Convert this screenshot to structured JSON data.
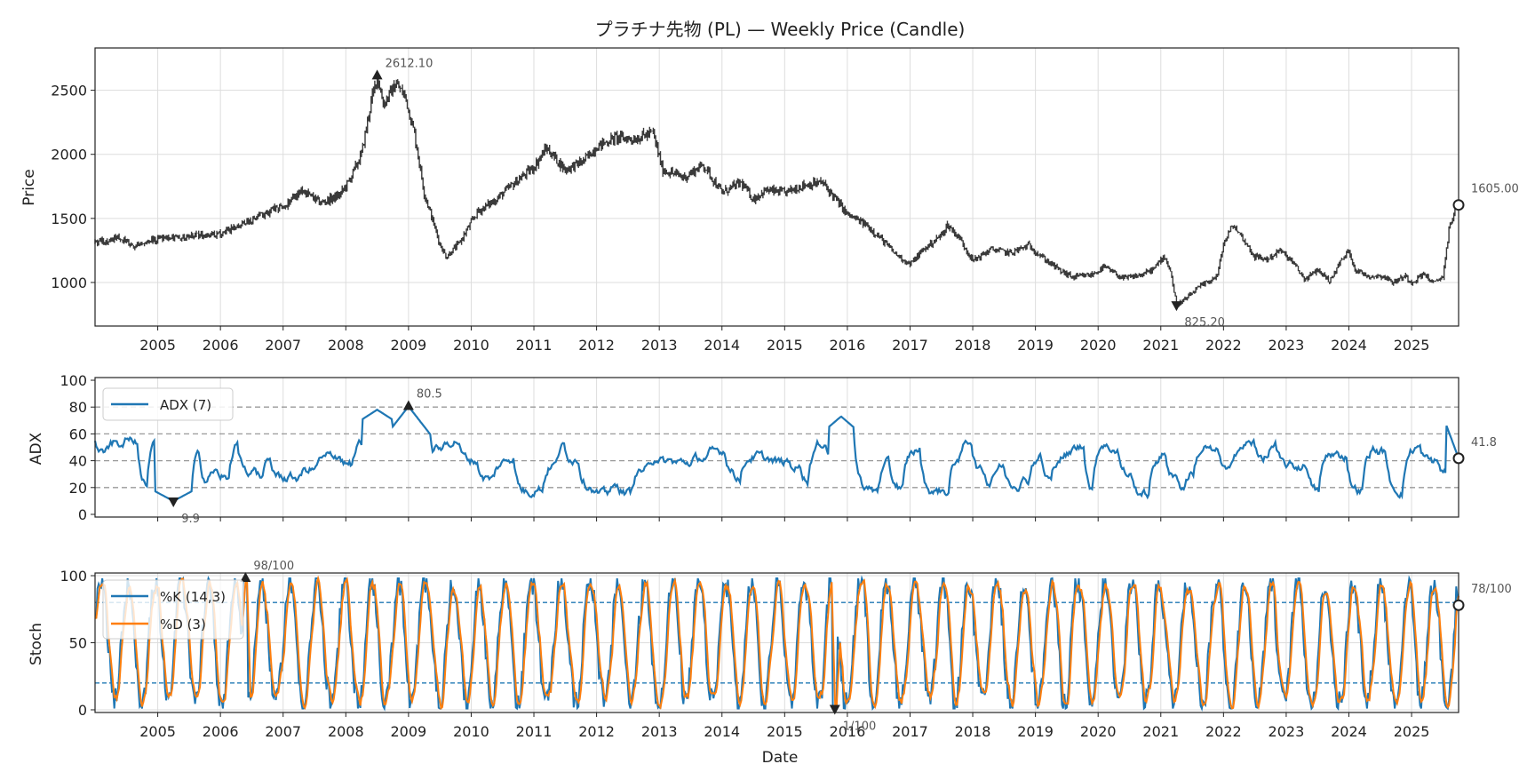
{
  "chart_data": [
    {
      "type": "candlestick",
      "title": "プラチナ先物 (PL) — Weekly Price (Candle)",
      "ylabel": "Price",
      "xlabel": "",
      "x_ticks": [
        "2005",
        "2006",
        "2007",
        "2008",
        "2009",
        "2010",
        "2011",
        "2012",
        "2013",
        "2014",
        "2015",
        "2016",
        "2017",
        "2018",
        "2019",
        "2020",
        "2021",
        "2022",
        "2023",
        "2024",
        "2025"
      ],
      "y_ticks": [
        1000,
        1500,
        2000,
        2500
      ],
      "xlim": [
        2004.0,
        2025.75
      ],
      "ylim": [
        660,
        2830
      ],
      "keypoints": [
        [
          2004.0,
          1310
        ],
        [
          2004.4,
          1350
        ],
        [
          2004.6,
          1280
        ],
        [
          2005.0,
          1340
        ],
        [
          2005.5,
          1360
        ],
        [
          2006.0,
          1380
        ],
        [
          2006.4,
          1460
        ],
        [
          2006.8,
          1560
        ],
        [
          2007.0,
          1590
        ],
        [
          2007.3,
          1720
        ],
        [
          2007.6,
          1620
        ],
        [
          2007.9,
          1680
        ],
        [
          2008.05,
          1790
        ],
        [
          2008.25,
          2000
        ],
        [
          2008.4,
          2400
        ],
        [
          2008.5,
          2612
        ],
        [
          2008.6,
          2390
        ],
        [
          2008.8,
          2550
        ],
        [
          2008.95,
          2450
        ],
        [
          2009.1,
          2150
        ],
        [
          2009.25,
          1700
        ],
        [
          2009.5,
          1300
        ],
        [
          2009.6,
          1200
        ],
        [
          2009.8,
          1300
        ],
        [
          2010.1,
          1550
        ],
        [
          2010.4,
          1650
        ],
        [
          2010.7,
          1780
        ],
        [
          2011.0,
          1900
        ],
        [
          2011.2,
          2050
        ],
        [
          2011.5,
          1880
        ],
        [
          2011.8,
          1950
        ],
        [
          2012.0,
          2060
        ],
        [
          2012.3,
          2130
        ],
        [
          2012.6,
          2120
        ],
        [
          2012.9,
          2170
        ],
        [
          2013.05,
          1880
        ],
        [
          2013.4,
          1820
        ],
        [
          2013.7,
          1920
        ],
        [
          2014.0,
          1700
        ],
        [
          2014.3,
          1780
        ],
        [
          2014.5,
          1650
        ],
        [
          2014.7,
          1720
        ],
        [
          2015.0,
          1700
        ],
        [
          2015.3,
          1760
        ],
        [
          2015.6,
          1780
        ],
        [
          2015.8,
          1660
        ],
        [
          2016.0,
          1530
        ],
        [
          2016.3,
          1450
        ],
        [
          2016.5,
          1360
        ],
        [
          2016.75,
          1230
        ],
        [
          2017.0,
          1140
        ],
        [
          2017.2,
          1250
        ],
        [
          2017.5,
          1370
        ],
        [
          2017.6,
          1450
        ],
        [
          2017.8,
          1340
        ],
        [
          2018.0,
          1170
        ],
        [
          2018.3,
          1260
        ],
        [
          2018.6,
          1230
        ],
        [
          2018.9,
          1290
        ],
        [
          2019.1,
          1200
        ],
        [
          2019.4,
          1090
        ],
        [
          2019.6,
          1040
        ],
        [
          2019.9,
          1060
        ],
        [
          2020.1,
          1120
        ],
        [
          2020.4,
          1030
        ],
        [
          2020.7,
          1060
        ],
        [
          2020.9,
          1110
        ],
        [
          2021.05,
          1210
        ],
        [
          2021.15,
          1100
        ],
        [
          2021.25,
          825
        ],
        [
          2021.4,
          870
        ],
        [
          2021.6,
          960
        ],
        [
          2021.9,
          1050
        ],
        [
          2022.0,
          1300
        ],
        [
          2022.15,
          1450
        ],
        [
          2022.3,
          1350
        ],
        [
          2022.5,
          1200
        ],
        [
          2022.7,
          1180
        ],
        [
          2022.9,
          1250
        ],
        [
          2023.1,
          1160
        ],
        [
          2023.3,
          1020
        ],
        [
          2023.5,
          1100
        ],
        [
          2023.7,
          1010
        ],
        [
          2023.85,
          1150
        ],
        [
          2024.0,
          1250
        ],
        [
          2024.1,
          1100
        ],
        [
          2024.3,
          1050
        ],
        [
          2024.55,
          1050
        ],
        [
          2024.7,
          1000
        ],
        [
          2024.9,
          1050
        ],
        [
          2025.0,
          1000
        ],
        [
          2025.2,
          1070
        ],
        [
          2025.35,
          990
        ],
        [
          2025.5,
          1050
        ],
        [
          2025.6,
          1420
        ],
        [
          2025.68,
          1560
        ],
        [
          2025.75,
          1605
        ]
      ],
      "annotations": [
        {
          "label": "2612.10",
          "x": 2008.5,
          "y": 2612.1,
          "marker": "max"
        },
        {
          "label": "825.20",
          "x": 2021.25,
          "y": 825.2,
          "marker": "min"
        },
        {
          "label": "1605.00",
          "x": 2025.75,
          "y": 1605.0,
          "marker": "last"
        }
      ]
    },
    {
      "type": "line",
      "ylabel": "ADX",
      "legend": [
        "ADX (7)"
      ],
      "x_ticks_visible": false,
      "y_ticks": [
        0,
        20,
        40,
        60,
        80,
        100
      ],
      "ylim": [
        -2,
        102
      ],
      "ref_lines": [
        20,
        40,
        60,
        80
      ],
      "series": [
        {
          "name": "ADX (7)",
          "color": "#1f77b4"
        }
      ],
      "annotations": [
        {
          "label": "80.5",
          "x": 2009.0,
          "y": 80.5,
          "marker": "max"
        },
        {
          "label": "9.9",
          "x": 2005.25,
          "y": 9.9,
          "marker": "min"
        },
        {
          "label": "41.8",
          "x": 2025.75,
          "y": 41.8,
          "marker": "last"
        }
      ]
    },
    {
      "type": "line",
      "ylabel": "Stoch",
      "xlabel": "Date",
      "legend": [
        "%K (14,3)",
        "%D (3)"
      ],
      "x_ticks": [
        "2005",
        "2006",
        "2007",
        "2008",
        "2009",
        "2010",
        "2011",
        "2012",
        "2013",
        "2014",
        "2015",
        "2016",
        "2017",
        "2018",
        "2019",
        "2020",
        "2021",
        "2022",
        "2023",
        "2024",
        "2025"
      ],
      "y_ticks": [
        0,
        50,
        100
      ],
      "ylim": [
        -2,
        102
      ],
      "ref_lines": [
        20,
        80
      ],
      "series": [
        {
          "name": "%K (14,3)",
          "color": "#1f77b4"
        },
        {
          "name": "%D (3)",
          "color": "#ff7f0e"
        }
      ],
      "annotations": [
        {
          "label": "98/100",
          "x": 2006.4,
          "y": 98,
          "marker": "max"
        },
        {
          "label": "1/100",
          "x": 2015.8,
          "y": 1,
          "marker": "min"
        },
        {
          "label": "78/100",
          "x": 2025.75,
          "y": 78,
          "marker": "last"
        }
      ]
    }
  ]
}
